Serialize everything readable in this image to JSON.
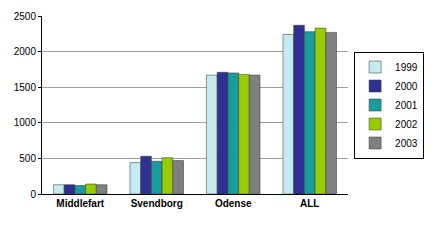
{
  "chart_data": {
    "type": "bar",
    "categories": [
      "Middlefart",
      "Svendborg",
      "Odense",
      "ALL"
    ],
    "series": [
      {
        "name": "1999",
        "color": "#c4ecf0",
        "values": [
          130,
          440,
          1670,
          2240
        ]
      },
      {
        "name": "2000",
        "color": "#2e3192",
        "values": [
          130,
          530,
          1710,
          2370
        ]
      },
      {
        "name": "2001",
        "color": "#1a9c9c",
        "values": [
          120,
          460,
          1700,
          2280
        ]
      },
      {
        "name": "2002",
        "color": "#99cc00",
        "values": [
          140,
          510,
          1680,
          2330
        ]
      },
      {
        "name": "2003",
        "color": "#808080",
        "values": [
          130,
          470,
          1670,
          2270
        ]
      }
    ],
    "ylim": [
      0,
      2500
    ],
    "yticks": [
      0,
      500,
      1000,
      1500,
      2000,
      2500
    ],
    "grid": true,
    "legend": "right"
  }
}
